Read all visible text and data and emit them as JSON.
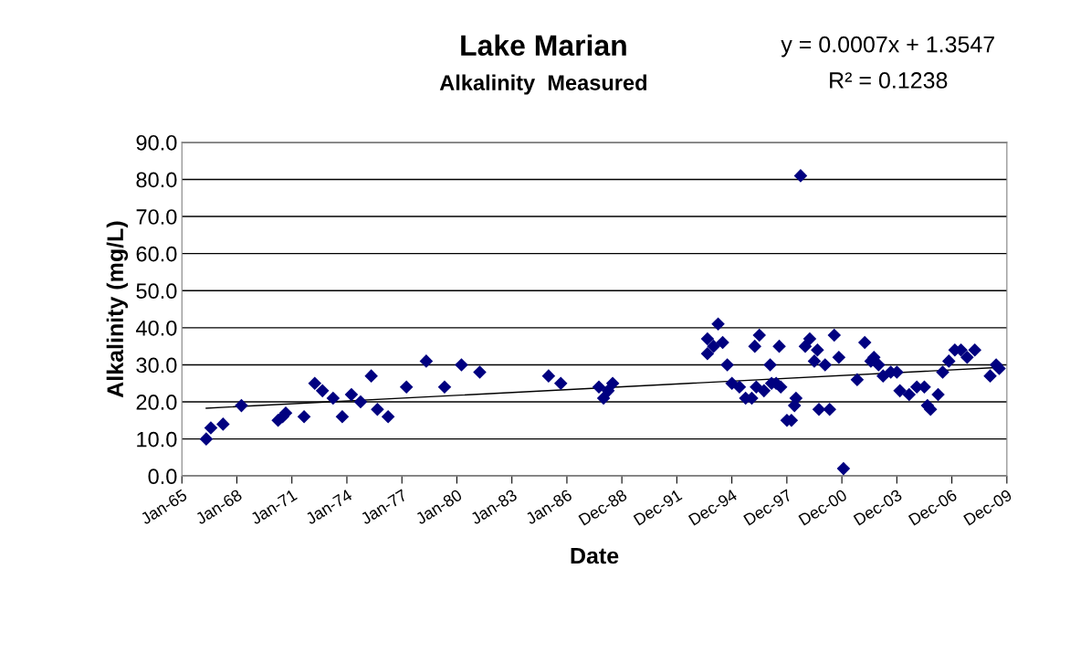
{
  "chart_data": {
    "type": "scatter",
    "title": "Lake Marian",
    "subtitle": "Alkalinity  Measured",
    "xlabel": "Date",
    "ylabel": "Alkalinity (mg/L)",
    "annotations": [
      "y = 0.0007x + 1.3547",
      "R² = 0.1238"
    ],
    "marker": "diamond",
    "grid": "y",
    "series": [
      {
        "color": "#000080",
        "x": [
          "1966-05",
          "1966-08",
          "1967-04",
          "1968-04",
          "1970-04",
          "1970-07",
          "1970-09",
          "1971-09",
          "1972-04",
          "1972-09",
          "1973-04",
          "1973-10",
          "1974-04",
          "1974-10",
          "1975-05",
          "1975-09",
          "1976-04",
          "1977-04",
          "1978-05",
          "1979-05",
          "1980-04",
          "1981-04",
          "1985-01",
          "1985-09",
          "1987-10",
          "1988-01",
          "1988-04",
          "1988-07",
          "1993-09",
          "1993-09",
          "1994-01",
          "1994-04",
          "1994-07",
          "1994-10",
          "1995-01",
          "1995-06",
          "1995-10",
          "1996-02",
          "1996-04",
          "1996-05",
          "1996-07",
          "1996-10",
          "1997-02",
          "1997-03",
          "1997-06",
          "1997-08",
          "1997-09",
          "1998-01",
          "1998-04",
          "1998-06",
          "1998-07",
          "1998-10",
          "1999-01",
          "1999-04",
          "1999-07",
          "1999-09",
          "1999-10",
          "2000-02",
          "2000-05",
          "2000-08",
          "2000-11",
          "2001-02",
          "2001-11",
          "2002-04",
          "2002-08",
          "2002-10",
          "2003-01",
          "2003-04",
          "2003-09",
          "2004-01",
          "2004-03",
          "2004-09",
          "2005-02",
          "2005-07",
          "2005-09",
          "2005-11",
          "2006-04",
          "2006-07",
          "2006-11",
          "2007-03",
          "2007-07",
          "2007-11",
          "2008-04",
          "2009-02",
          "2009-06",
          "2009-08"
        ],
        "values": [
          10,
          13,
          14,
          19,
          15,
          16,
          17,
          16,
          25,
          23,
          21,
          16,
          22,
          20,
          27,
          18,
          16,
          24,
          31,
          24,
          30,
          28,
          27,
          25,
          24,
          21,
          23,
          25,
          33,
          37,
          35,
          41,
          36,
          30,
          25,
          24,
          21,
          21,
          35,
          24,
          38,
          23,
          30,
          25,
          25,
          35,
          24,
          15,
          15,
          19,
          21,
          81,
          35,
          37,
          31,
          34,
          18,
          30,
          18,
          38,
          32,
          2,
          26,
          36,
          31,
          32,
          30,
          27,
          28,
          28,
          23,
          22,
          24,
          24,
          19,
          18,
          22,
          28,
          31,
          34,
          34,
          32,
          34,
          27,
          30,
          29
        ]
      },
      {
        "type": "line",
        "color": "#000000",
        "marker": "none",
        "x": [
          "1966-05",
          "2009-08"
        ],
        "values": [
          18.3,
          29.3
        ]
      }
    ],
    "xlim": [
      "1965-01-01",
      "2009-12-31"
    ],
    "xticks": [
      {
        "value": "1965-01-01",
        "label": "Jan-65"
      },
      {
        "value": "1968-01-01",
        "label": "Jan-68"
      },
      {
        "value": "1971-01-01",
        "label": "Jan-71"
      },
      {
        "value": "1974-01-01",
        "label": "Jan-74"
      },
      {
        "value": "1977-01-01",
        "label": "Jan-77"
      },
      {
        "value": "1980-01-01",
        "label": "Jan-80"
      },
      {
        "value": "1983-01-01",
        "label": "Jan-83"
      },
      {
        "value": "1986-01-01",
        "label": "Jan-86"
      },
      {
        "value": "1988-12-31",
        "label": "Dec-88"
      },
      {
        "value": "1991-12-31",
        "label": "Dec-91"
      },
      {
        "value": "1994-12-31",
        "label": "Dec-94"
      },
      {
        "value": "1997-12-31",
        "label": "Dec-97"
      },
      {
        "value": "2000-12-31",
        "label": "Dec-00"
      },
      {
        "value": "2003-12-31",
        "label": "Dec-03"
      },
      {
        "value": "2006-12-31",
        "label": "Dec-06"
      },
      {
        "value": "2009-12-31",
        "label": "Dec-09"
      }
    ],
    "ylim": [
      0,
      90
    ],
    "yticks": [
      {
        "value": 0,
        "label": "0.0"
      },
      {
        "value": 10,
        "label": "10.0"
      },
      {
        "value": 20,
        "label": "20.0"
      },
      {
        "value": 30,
        "label": "30.0"
      },
      {
        "value": 40,
        "label": "40.0"
      },
      {
        "value": 50,
        "label": "50.0"
      },
      {
        "value": 60,
        "label": "60.0"
      },
      {
        "value": 70,
        "label": "70.0"
      },
      {
        "value": 80,
        "label": "80.0"
      },
      {
        "value": 90,
        "label": "90.0"
      }
    ]
  }
}
